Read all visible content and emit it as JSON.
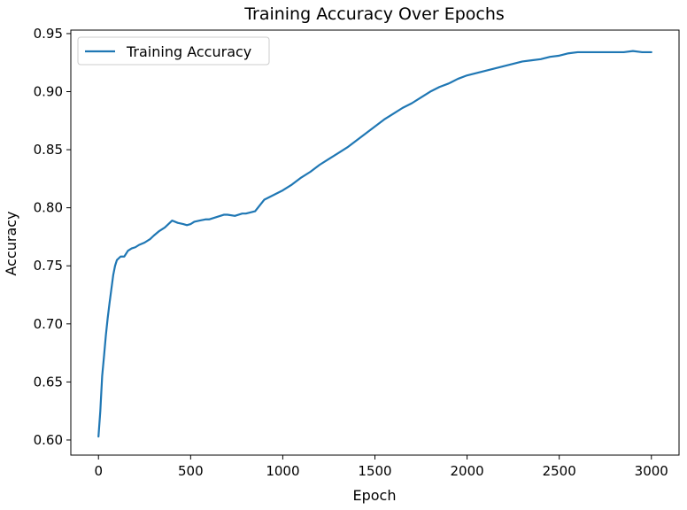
{
  "chart_data": {
    "type": "line",
    "title": "Training Accuracy Over Epochs",
    "xlabel": "Epoch",
    "ylabel": "Accuracy",
    "xlim": [
      -150,
      3150
    ],
    "ylim": [
      0.587,
      0.953
    ],
    "xticks": [
      0,
      500,
      1000,
      1500,
      2000,
      2500,
      3000
    ],
    "yticks": [
      0.6,
      0.65,
      0.7,
      0.75,
      0.8,
      0.85,
      0.9,
      0.95
    ],
    "xtick_labels": [
      "0",
      "500",
      "1000",
      "1500",
      "2000",
      "2500",
      "3000"
    ],
    "ytick_labels": [
      "0.60",
      "0.65",
      "0.70",
      "0.75",
      "0.80",
      "0.85",
      "0.90",
      "0.95"
    ],
    "grid": false,
    "legend_position": "top-left",
    "series": [
      {
        "name": "Training Accuracy",
        "color": "#1f77b4",
        "x": [
          0,
          10,
          20,
          30,
          40,
          50,
          60,
          70,
          80,
          90,
          100,
          120,
          140,
          160,
          180,
          200,
          220,
          250,
          280,
          300,
          330,
          360,
          400,
          430,
          460,
          480,
          500,
          520,
          550,
          580,
          600,
          640,
          680,
          700,
          740,
          780,
          800,
          850,
          900,
          950,
          1000,
          1050,
          1100,
          1150,
          1200,
          1250,
          1300,
          1350,
          1400,
          1450,
          1500,
          1550,
          1600,
          1650,
          1700,
          1750,
          1800,
          1850,
          1900,
          1950,
          2000,
          2050,
          2100,
          2150,
          2200,
          2250,
          2300,
          2350,
          2400,
          2450,
          2500,
          2550,
          2600,
          2650,
          2700,
          2750,
          2800,
          2850,
          2900,
          2950,
          3000
        ],
        "values": [
          0.603,
          0.625,
          0.655,
          0.672,
          0.69,
          0.705,
          0.718,
          0.73,
          0.742,
          0.75,
          0.755,
          0.758,
          0.758,
          0.763,
          0.765,
          0.766,
          0.768,
          0.77,
          0.773,
          0.776,
          0.78,
          0.783,
          0.789,
          0.787,
          0.786,
          0.785,
          0.786,
          0.788,
          0.789,
          0.79,
          0.79,
          0.792,
          0.794,
          0.794,
          0.793,
          0.795,
          0.795,
          0.797,
          0.807,
          0.811,
          0.815,
          0.82,
          0.826,
          0.831,
          0.837,
          0.842,
          0.847,
          0.852,
          0.858,
          0.864,
          0.87,
          0.876,
          0.881,
          0.886,
          0.89,
          0.895,
          0.9,
          0.904,
          0.907,
          0.911,
          0.914,
          0.916,
          0.918,
          0.92,
          0.922,
          0.924,
          0.926,
          0.927,
          0.928,
          0.93,
          0.931,
          0.933,
          0.934,
          0.934,
          0.934,
          0.934,
          0.934,
          0.934,
          0.935,
          0.934,
          0.934
        ]
      }
    ]
  }
}
